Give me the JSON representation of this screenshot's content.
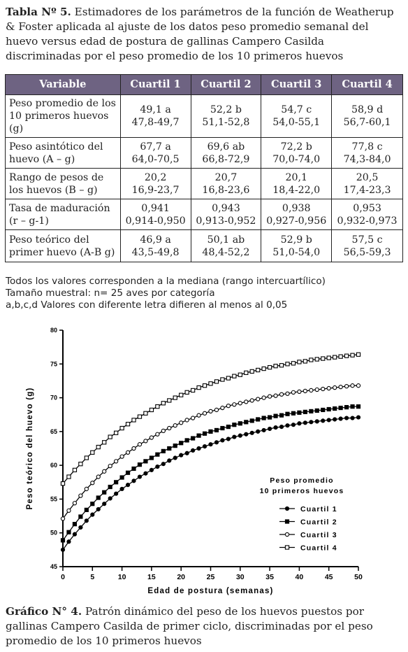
{
  "table": {
    "caption_label": "Tabla Nº 5.",
    "caption_text": " Estimadores de los parámetros de la función de Weatherup & Foster aplicada al ajuste de los datos peso promedio semanal del huevo versus edad de postura de gallinas Campero Casilda discriminadas por el peso promedio de los 10 primeros huevos",
    "headers": [
      "Variable",
      "Cuartil 1",
      "Cuartil 2",
      "Cuartil 3",
      "Cuartil 4"
    ],
    "rows": [
      {
        "label": "Peso promedio de los 10 primeros huevos (g)",
        "cells": [
          [
            "49,1 a",
            "47,8-49,7"
          ],
          [
            "52,2 b",
            "51,1-52,8"
          ],
          [
            "54,7 c",
            "54,0-55,1"
          ],
          [
            "58,9 d",
            "56,7-60,1"
          ]
        ]
      },
      {
        "label": "Peso asintótico del huevo (A – g)",
        "cells": [
          [
            "67,7 a",
            "64,0-70,5"
          ],
          [
            "69,6 ab",
            "66,8-72,9"
          ],
          [
            "72,2 b",
            "70,0-74,0"
          ],
          [
            "77,8 c",
            "74,3-84,0"
          ]
        ]
      },
      {
        "label": "Rango de pesos de los huevos (B – g)",
        "cells": [
          [
            "20,2",
            "16,9-23,7"
          ],
          [
            "20,7",
            "16,8-23,6"
          ],
          [
            "20,1",
            "18,4-22,0"
          ],
          [
            "20,5",
            "17,4-23,3"
          ]
        ]
      },
      {
        "label": "Tasa de maduración (r – g-1)",
        "cells": [
          [
            "0,941",
            "0,914-0,950"
          ],
          [
            "0,943",
            "0,913-0,952"
          ],
          [
            "0,938",
            "0,927-0,956"
          ],
          [
            "0,953",
            "0,932-0,973"
          ]
        ]
      },
      {
        "label": "Peso teórico del primer huevo (A-B g)",
        "cells": [
          [
            "46,9 a",
            "43,5-49,8"
          ],
          [
            "50,1 ab",
            "48,4-52,2"
          ],
          [
            "52,9 b",
            "51,0-54,0"
          ],
          [
            "57,5 c",
            "56,5-59,3"
          ]
        ]
      }
    ],
    "notes": [
      "Todos los valores corresponden a la mediana (rango intercuartílico)",
      "Tamaño muestral: n= 25 aves por categoría",
      "a,b,c,d Valores con diferente letra difieren al menos al 0,05"
    ]
  },
  "figure": {
    "caption_label": "Gráfico N° 4.",
    "caption_text": " Patrón dinámico del peso de los huevos puestos por gallinas Campero Casilda de primer ciclo, discriminadas por el peso promedio de los 10 primeros huevos"
  },
  "chart_data": {
    "type": "line",
    "xlabel": "Edad de postura (semanas)",
    "ylabel": "Peso teórico del huevo (g)",
    "xlim": [
      0,
      50
    ],
    "ylim": [
      45,
      80
    ],
    "xticks": [
      0,
      5,
      10,
      15,
      20,
      25,
      30,
      35,
      40,
      45,
      50
    ],
    "yticks": [
      45,
      50,
      55,
      60,
      65,
      70,
      75,
      80
    ],
    "grid": false,
    "legend_title": [
      "Peso promedio",
      "10 primeros huevos"
    ],
    "legend_position": "bottom-right",
    "x": [
      0,
      1,
      2,
      3,
      4,
      5,
      6,
      7,
      8,
      9,
      10,
      11,
      12,
      13,
      14,
      15,
      16,
      17,
      18,
      19,
      20,
      21,
      22,
      23,
      24,
      25,
      26,
      27,
      28,
      29,
      30,
      31,
      32,
      33,
      34,
      35,
      36,
      37,
      38,
      39,
      40,
      41,
      42,
      43,
      44,
      45,
      46,
      47,
      48,
      49,
      50
    ],
    "series": [
      {
        "name": "Cuartil 1",
        "marker": "filled-circle",
        "A": 67.7,
        "B": 20.2,
        "r": 0.941,
        "values": [
          47.5,
          48.7,
          49.8,
          50.8,
          51.8,
          52.7,
          53.5,
          54.3,
          55.1,
          55.8,
          56.5,
          57.1,
          57.7,
          58.3,
          58.8,
          59.3,
          59.8,
          60.2,
          60.7,
          61.1,
          61.5,
          61.8,
          62.2,
          62.5,
          62.8,
          63.1,
          63.4,
          63.7,
          63.9,
          64.2,
          64.4,
          64.6,
          64.8,
          65.0,
          65.2,
          65.4,
          65.6,
          65.7,
          65.9,
          66.0,
          66.2,
          66.3,
          66.4,
          66.5,
          66.6,
          66.7,
          66.8,
          66.9,
          67.0,
          67.0,
          67.1
        ]
      },
      {
        "name": "Cuartil 2",
        "marker": "filled-square",
        "A": 69.6,
        "B": 20.7,
        "r": 0.943,
        "values": [
          48.9,
          50.1,
          51.3,
          52.4,
          53.4,
          54.3,
          55.2,
          56.0,
          56.8,
          57.5,
          58.2,
          58.9,
          59.5,
          60.1,
          60.6,
          61.1,
          61.6,
          62.1,
          62.5,
          62.9,
          63.3,
          63.7,
          64.0,
          64.4,
          64.7,
          65.0,
          65.2,
          65.5,
          65.7,
          66.0,
          66.2,
          66.4,
          66.6,
          66.8,
          67.0,
          67.1,
          67.3,
          67.4,
          67.6,
          67.7,
          67.8,
          67.9,
          68.0,
          68.1,
          68.2,
          68.3,
          68.4,
          68.5,
          68.6,
          68.7,
          68.7
        ]
      },
      {
        "name": "Cuartil 3",
        "marker": "open-circle",
        "A": 72.2,
        "B": 20.1,
        "r": 0.938,
        "values": [
          52.1,
          53.3,
          54.4,
          55.5,
          56.5,
          57.4,
          58.3,
          59.1,
          59.9,
          60.6,
          61.3,
          61.9,
          62.5,
          63.1,
          63.6,
          64.1,
          64.6,
          65.1,
          65.5,
          65.9,
          66.3,
          66.7,
          67.0,
          67.4,
          67.7,
          68.0,
          68.2,
          68.5,
          68.8,
          69.0,
          69.2,
          69.4,
          69.6,
          69.8,
          70.0,
          70.2,
          70.3,
          70.5,
          70.6,
          70.8,
          70.9,
          71.0,
          71.1,
          71.2,
          71.3,
          71.4,
          71.5,
          71.6,
          71.7,
          71.8,
          71.8
        ]
      },
      {
        "name": "Cuartil 4",
        "marker": "open-square",
        "A": 77.8,
        "B": 20.5,
        "r": 0.953,
        "values": [
          57.3,
          58.3,
          59.3,
          60.2,
          61.1,
          61.9,
          62.7,
          63.4,
          64.2,
          64.8,
          65.5,
          66.1,
          66.7,
          67.2,
          67.7,
          68.2,
          68.7,
          69.2,
          69.6,
          70.0,
          70.4,
          70.8,
          71.1,
          71.5,
          71.8,
          72.1,
          72.4,
          72.7,
          72.9,
          73.2,
          73.4,
          73.7,
          73.9,
          74.1,
          74.3,
          74.5,
          74.7,
          74.8,
          75.0,
          75.1,
          75.3,
          75.4,
          75.6,
          75.7,
          75.8,
          75.9,
          76.0,
          76.1,
          76.2,
          76.3,
          76.4
        ]
      }
    ]
  }
}
